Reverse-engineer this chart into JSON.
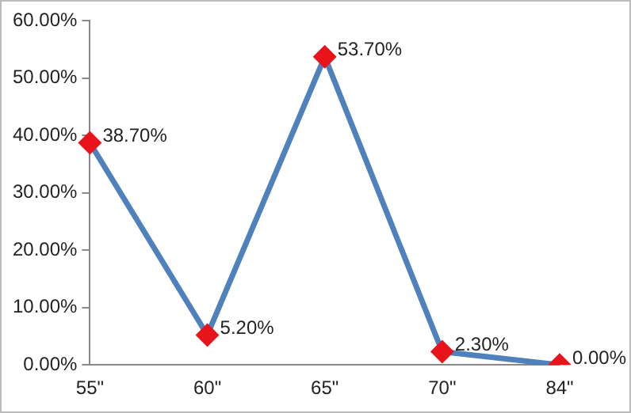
{
  "chart_data": {
    "type": "line",
    "categories": [
      "55\"",
      "60\"",
      "65\"",
      "70\"",
      "84\""
    ],
    "series": [
      {
        "color": "#4f81bd",
        "colors": [
          "#e8141b",
          "#e8141b",
          "#e8141b",
          "#e8141b",
          "#e8141b"
        ],
        "values": [
          38.7,
          5.2,
          53.7,
          2.3,
          0.0
        ],
        "value_labels": [
          "38.70%",
          "5.20%",
          "53.70%",
          "2.30%",
          "0.00%"
        ]
      }
    ],
    "ylim": [
      0,
      60
    ],
    "yticks": [
      {
        "value": 0,
        "label": "0.00%"
      },
      {
        "value": 10,
        "label": "10.00%"
      },
      {
        "value": 20,
        "label": "20.00%"
      },
      {
        "value": 30,
        "label": "30.00%"
      },
      {
        "value": 40,
        "label": "40.00%"
      },
      {
        "value": 50,
        "label": "50.00%"
      },
      {
        "value": 60,
        "label": "60.00%"
      }
    ],
    "grid": false,
    "legend": false,
    "marker": "diamond",
    "line_style": "solid"
  }
}
